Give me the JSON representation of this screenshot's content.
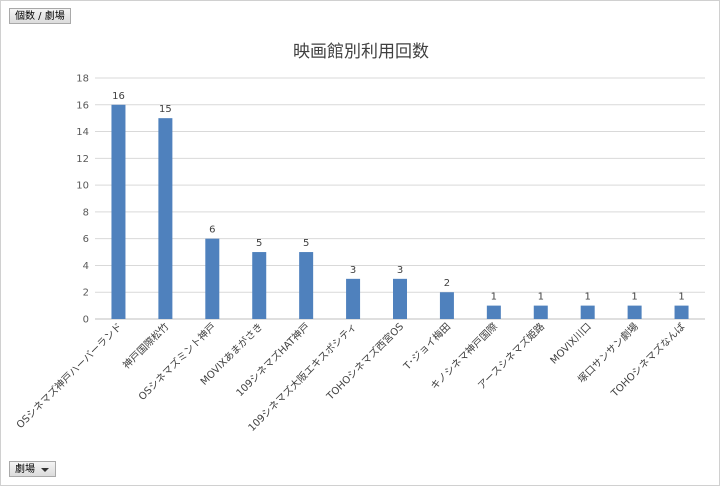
{
  "pivot": {
    "value_field": "個数 / 劇場",
    "axis_field": "劇場"
  },
  "chart_data": {
    "type": "bar",
    "title": "映画館別利用回数",
    "xlabel": "",
    "ylabel": "",
    "ylim": [
      0,
      18
    ],
    "yticks": [
      0,
      2,
      4,
      6,
      8,
      10,
      12,
      14,
      16,
      18
    ],
    "grid": true,
    "legend": "none",
    "bar_color": "#4f81bd",
    "categories": [
      "OSシネマズ神戸ハーバーランド",
      "神戸国際松竹",
      "OSシネマズミント神戸",
      "MOVIXあまがさき",
      "109シネマズHAT神戸",
      "109シネマズ大阪エキスポシティ",
      "TOHOシネマズ西宮OS",
      "T･ジョイ梅田",
      "キノシネマ神戸国際",
      "アースシネマズ姫路",
      "MOVIX川口",
      "塚口サンサン劇場",
      "TOHOシネマズなんば"
    ],
    "values": [
      16,
      15,
      6,
      5,
      5,
      3,
      3,
      2,
      1,
      1,
      1,
      1,
      1
    ]
  }
}
